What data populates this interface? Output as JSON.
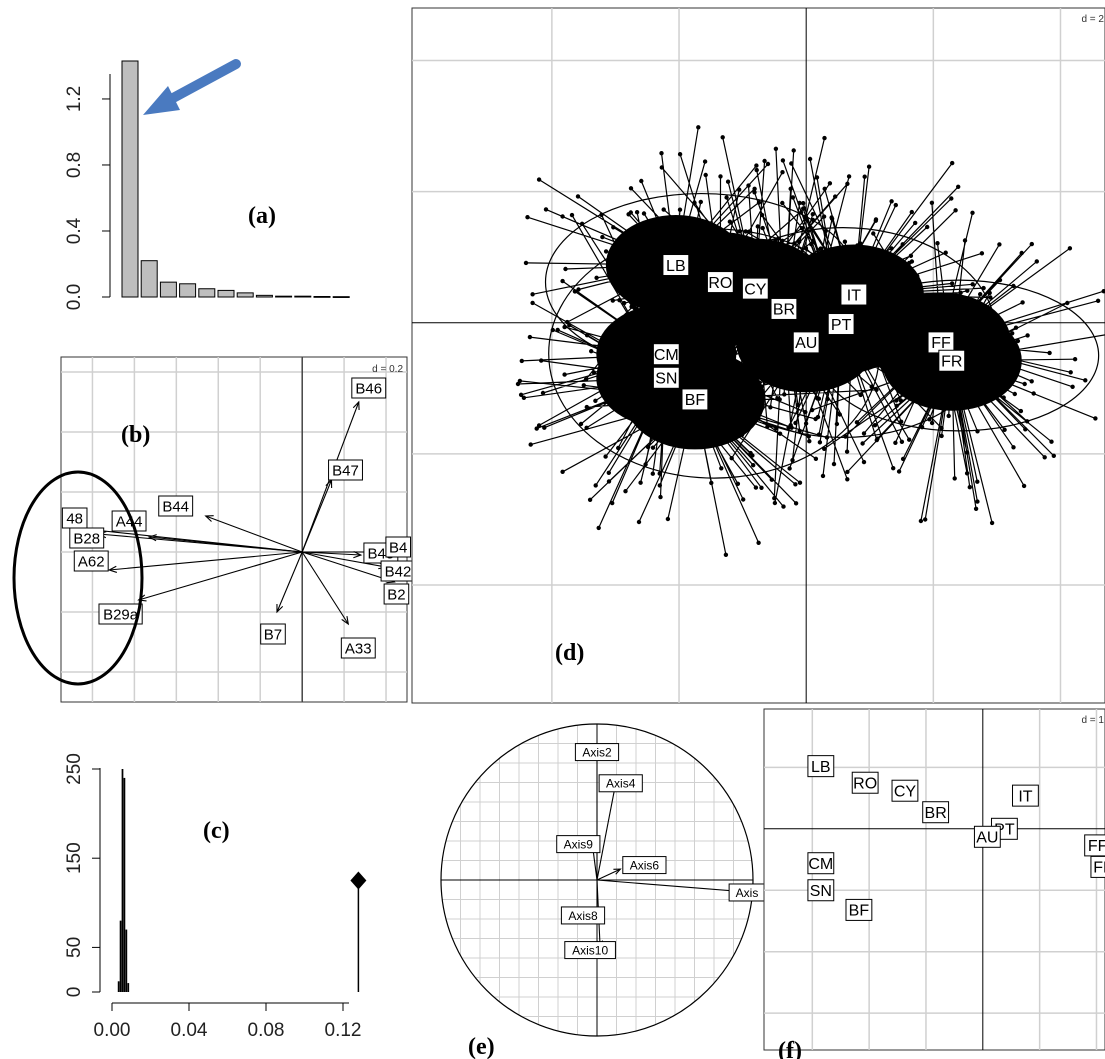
{
  "colors": {
    "bar_fill": "#bebebe",
    "grid": "#d0d0d0",
    "ink": "#000000",
    "arrow": "#4a7ac0",
    "frame": "#333333"
  },
  "chart_data": [
    {
      "id": "a",
      "type": "bar",
      "panel_label": "(a)",
      "values": [
        1.43,
        0.22,
        0.09,
        0.08,
        0.05,
        0.04,
        0.025,
        0.01,
        0.005,
        0.005,
        0.003,
        0.002
      ],
      "ylim": [
        0,
        1.45
      ],
      "yticks": [
        0.0,
        0.4,
        0.8,
        1.2
      ],
      "ytick_labels": [
        "0.0",
        "0.4",
        "0.8",
        "1.2"
      ],
      "annotation": "arrow pointing to first eigenvalue"
    },
    {
      "id": "b",
      "type": "scatter",
      "panel_label": "(b)",
      "scale_label": "d = 0.2",
      "xlim": [
        -1.15,
        0.5
      ],
      "ylim": [
        -0.5,
        0.65
      ],
      "origin": [
        0,
        0
      ],
      "vectors": [
        {
          "label": "B46",
          "x": 0.27,
          "y": 0.5
        },
        {
          "label": "B47",
          "x": 0.14,
          "y": 0.24
        },
        {
          "label": "B44",
          "x": -0.46,
          "y": 0.12
        },
        {
          "label": "A44",
          "x": -0.73,
          "y": 0.05
        },
        {
          "label": "B28",
          "x": -0.97,
          "y": 0.06
        },
        {
          "label": "48",
          "x": -1.08,
          "y": 0.08
        },
        {
          "label": "A62",
          "x": -0.92,
          "y": -0.06
        },
        {
          "label": "B29a",
          "x": -0.78,
          "y": -0.16
        },
        {
          "label": "B7",
          "x": -0.12,
          "y": -0.2
        },
        {
          "label": "A33",
          "x": 0.22,
          "y": -0.24
        },
        {
          "label": "B45",
          "x": 0.28,
          "y": -0.01
        },
        {
          "label": "B4",
          "x": 0.42,
          "y": 0.0
        },
        {
          "label": "B42",
          "x": 0.4,
          "y": -0.05
        },
        {
          "label": "B2",
          "x": 0.44,
          "y": -0.1
        }
      ]
    },
    {
      "id": "c",
      "type": "histogram",
      "panel_label": "(c)",
      "hist_x": [
        0.003,
        0.004,
        0.005,
        0.006,
        0.007,
        0.008
      ],
      "hist_y": [
        12,
        80,
        250,
        240,
        70,
        10
      ],
      "observation": {
        "x": 0.128,
        "y": 125
      },
      "xlim": [
        0,
        0.13
      ],
      "ylim": [
        0,
        260
      ],
      "xticks": [
        0.0,
        0.04,
        0.08,
        0.12
      ],
      "xtick_labels": [
        "0.00",
        "0.04",
        "0.08",
        "0.12"
      ],
      "yticks": [
        0,
        50,
        150,
        250
      ],
      "ytick_labels": [
        "0",
        "50",
        "150",
        "250"
      ]
    },
    {
      "id": "d",
      "type": "scatter",
      "panel_label": "(d)",
      "scale_label": "d = 2",
      "xlim": [
        -6.2,
        4.7
      ],
      "ylim": [
        -5.8,
        4.8
      ],
      "groups": [
        {
          "label": "LB",
          "x": -2.05,
          "y": 0.88
        },
        {
          "label": "RO",
          "x": -1.35,
          "y": 0.62
        },
        {
          "label": "CY",
          "x": -0.8,
          "y": 0.52
        },
        {
          "label": "BR",
          "x": -0.35,
          "y": 0.21
        },
        {
          "label": "IT",
          "x": 0.75,
          "y": 0.43
        },
        {
          "label": "PT",
          "x": 0.55,
          "y": -0.02
        },
        {
          "label": "AU",
          "x": 0.0,
          "y": -0.3
        },
        {
          "label": "FF",
          "x": 2.12,
          "y": -0.3
        },
        {
          "label": "FR",
          "x": 2.29,
          "y": -0.58
        },
        {
          "label": "CM",
          "x": -2.2,
          "y": -0.48
        },
        {
          "label": "SN",
          "x": -2.2,
          "y": -0.84
        },
        {
          "label": "BF",
          "x": -1.75,
          "y": -1.17
        }
      ],
      "ellipses": [
        {
          "cx": -1.65,
          "cy": 0.62,
          "rx": 2.45,
          "ry": 1.35
        },
        {
          "cx": -1.45,
          "cy": -0.47,
          "rx": 2.6,
          "ry": 1.9
        },
        {
          "cx": 0.58,
          "cy": -0.15,
          "rx": 2.4,
          "ry": 1.6
        },
        {
          "cx": 2.4,
          "cy": -0.5,
          "rx": 2.2,
          "ry": 1.15
        }
      ]
    },
    {
      "id": "e",
      "type": "scatter",
      "panel_label": "(e)",
      "vectors": [
        {
          "label": "Axis2",
          "x": 0.0,
          "y": 0.82
        },
        {
          "label": "Axis4",
          "x": 0.12,
          "y": 0.62
        },
        {
          "label": "Axis9",
          "x": -0.03,
          "y": 0.23
        },
        {
          "label": "Axis6",
          "x": 0.15,
          "y": 0.07
        },
        {
          "label": "Axis",
          "x": 1.0,
          "y": -0.08
        },
        {
          "label": "Axis8",
          "x": 0.0,
          "y": -0.24
        },
        {
          "label": "Axis10",
          "x": 0.02,
          "y": -0.43
        }
      ]
    },
    {
      "id": "f",
      "type": "scatter",
      "panel_label": "(f)",
      "scale_label": "d = 1",
      "xlim": [
        -3.85,
        2.15
      ],
      "ylim": [
        -3.6,
        1.95
      ],
      "points": [
        {
          "label": "LB",
          "x": -2.85,
          "y": 1.02
        },
        {
          "label": "RO",
          "x": -2.07,
          "y": 0.75
        },
        {
          "label": "CY",
          "x": -1.37,
          "y": 0.62
        },
        {
          "label": "BR",
          "x": -0.83,
          "y": 0.27
        },
        {
          "label": "IT",
          "x": 0.75,
          "y": 0.54
        },
        {
          "label": "PT",
          "x": 0.38,
          "y": 0.0
        },
        {
          "label": "AU",
          "x": 0.08,
          "y": -0.13
        },
        {
          "label": "FF",
          "x": 2.02,
          "y": -0.27
        },
        {
          "label": "FR",
          "x": 2.13,
          "y": -0.62
        },
        {
          "label": "CM",
          "x": -2.85,
          "y": -0.56
        },
        {
          "label": "SN",
          "x": -2.85,
          "y": -1.0
        },
        {
          "label": "BF",
          "x": -2.18,
          "y": -1.32
        }
      ]
    }
  ]
}
